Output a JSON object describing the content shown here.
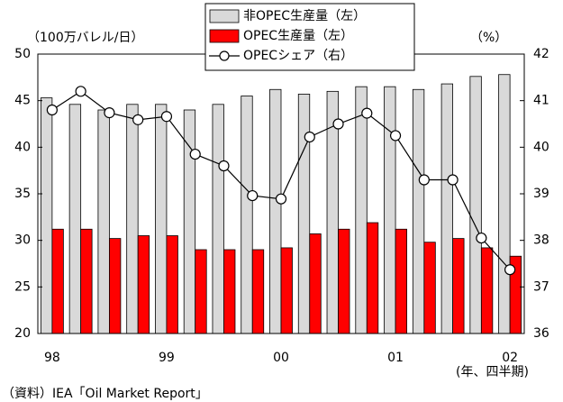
{
  "chart_data": {
    "type": "bar",
    "y_label": "（100万バレル/日）",
    "y2_label": "（%）",
    "x_label": "(年、四半期)",
    "source": "（資料）IEA「Oil Market Report」",
    "categories": [
      "98",
      null,
      null,
      null,
      "99",
      null,
      null,
      null,
      "00",
      null,
      null,
      null,
      "01",
      null,
      null,
      null,
      "02"
    ],
    "series": [
      {
        "name": "非OPEC生産量（左）",
        "color": "#d9d9d9",
        "values": [
          45.3,
          44.6,
          44.0,
          44.6,
          44.6,
          44.0,
          44.6,
          45.5,
          46.2,
          45.7,
          46.0,
          46.5,
          46.5,
          46.2,
          46.8,
          47.6,
          47.8
        ]
      },
      {
        "name": "OPEC生産量（左）",
        "color": "#ff0000",
        "values": [
          31.2,
          31.2,
          30.2,
          30.5,
          30.5,
          29.0,
          29.0,
          29.0,
          29.2,
          30.7,
          31.2,
          31.9,
          31.2,
          29.8,
          30.2,
          29.2,
          28.3
        ]
      },
      {
        "name": "OPECシェア（右）",
        "color": "#000000",
        "type": "line",
        "axis": "y2",
        "values": [
          40.8,
          41.2,
          40.74,
          40.59,
          40.66,
          39.85,
          39.6,
          38.96,
          38.89,
          40.22,
          40.5,
          40.73,
          40.25,
          39.3,
          39.3,
          38.05,
          37.37
        ]
      }
    ],
    "ylim": [
      20,
      50
    ],
    "yticks": [
      20,
      25,
      30,
      35,
      40,
      45,
      50
    ],
    "y2lim": [
      36,
      42
    ],
    "y2ticks": [
      36,
      37,
      38,
      39,
      40,
      41,
      42
    ],
    "grid": false
  }
}
